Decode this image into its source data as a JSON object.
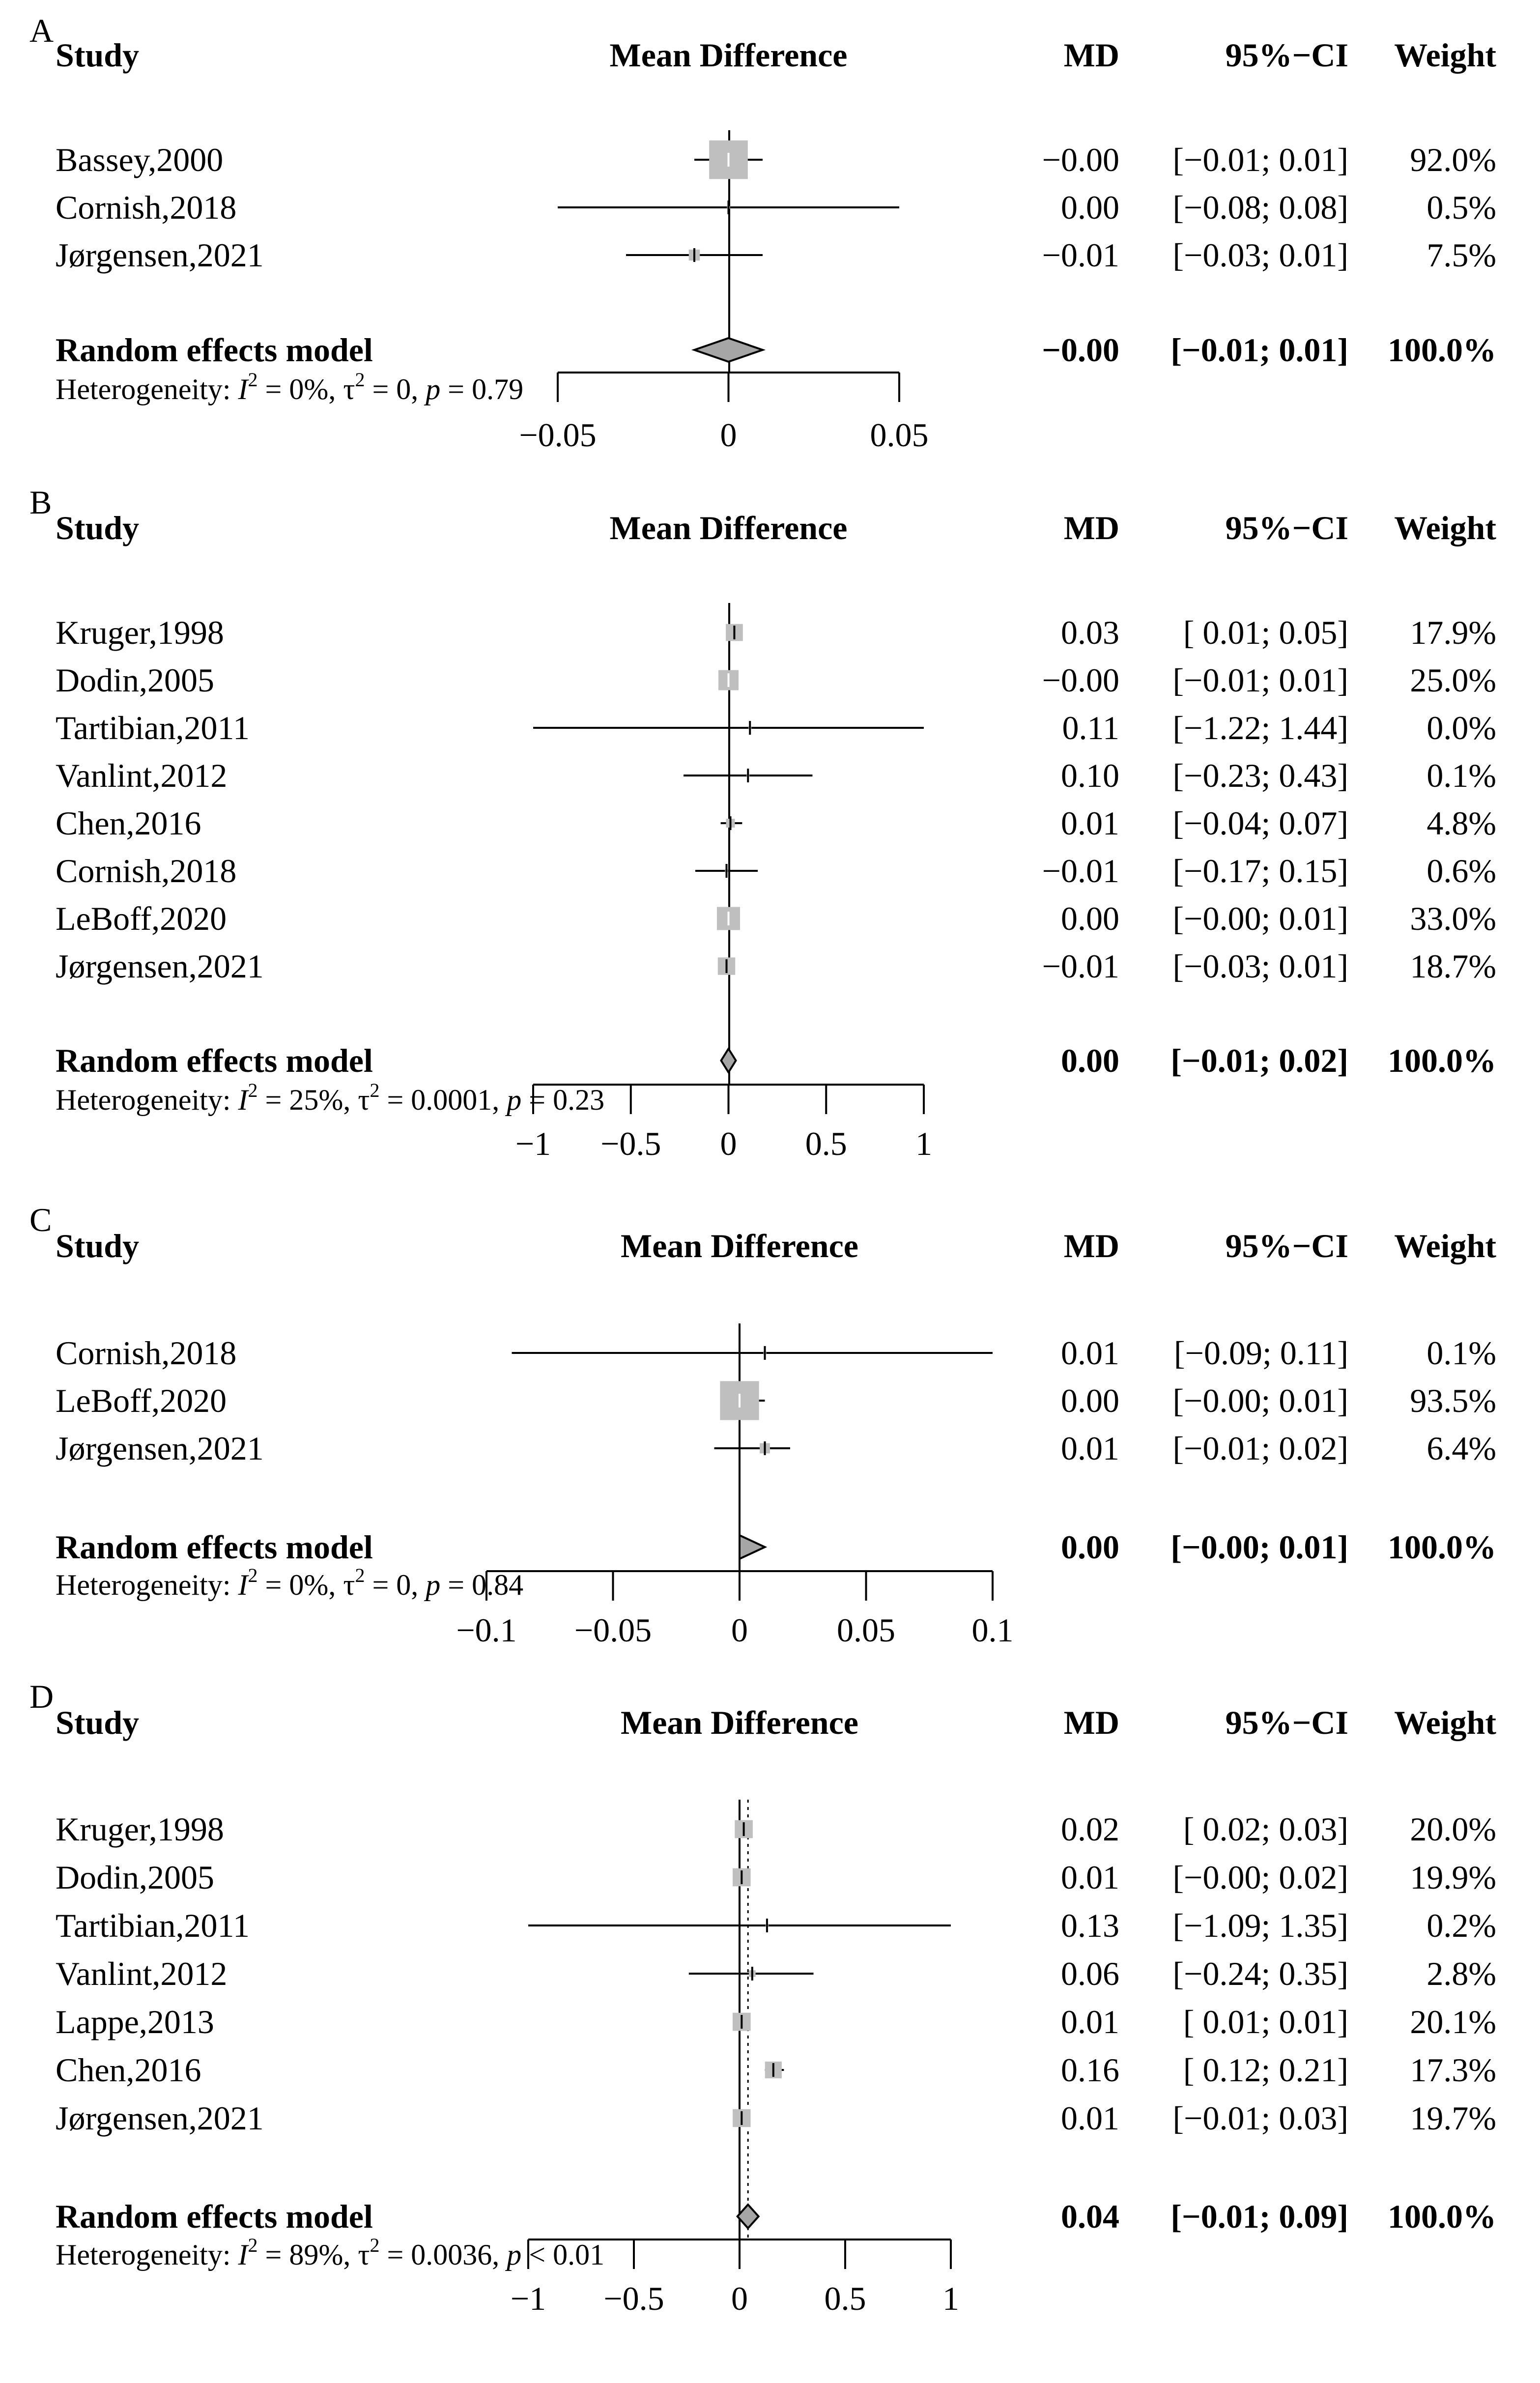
{
  "colors": {
    "box": "#bfbfbf",
    "diamond": "#a6a6a6",
    "line": "#000000",
    "tick": "#ffffff"
  },
  "chart_data": [
    {
      "type": "forest",
      "panel_label": "A",
      "headers": {
        "study": "Study",
        "plot": "Mean Difference",
        "md": "MD",
        "ci": "95%−CI",
        "weight": "Weight"
      },
      "xlim": [
        -0.05,
        0.05
      ],
      "ticks": [
        -0.05,
        0,
        0.05
      ],
      "tick_labels": [
        "−0.05",
        "0",
        "0.05"
      ],
      "studies": [
        {
          "name": "Bassey,2000",
          "md": -0.0,
          "lower": -0.01,
          "upper": 0.01,
          "weight": 92.0,
          "md_text": "−0.00",
          "ci_text": "[−0.01; 0.01]",
          "weight_text": "92.0%"
        },
        {
          "name": "Cornish,2018",
          "md": 0.0,
          "lower": -0.08,
          "upper": 0.08,
          "weight": 0.5,
          "md_text": "0.00",
          "ci_text": "[−0.08; 0.08]",
          "weight_text": "0.5%"
        },
        {
          "name": "Jørgensen,2021",
          "md": -0.01,
          "lower": -0.03,
          "upper": 0.01,
          "weight": 7.5,
          "md_text": "−0.01",
          "ci_text": "[−0.03; 0.01]",
          "weight_text": "7.5%"
        }
      ],
      "pooled": {
        "name": "Random effects model",
        "md": -0.0,
        "lower": -0.01,
        "upper": 0.01,
        "md_text": "−0.00",
        "ci_text": "[−0.01; 0.01]",
        "weight_text": "100.0%"
      },
      "heterogeneity": {
        "prefix": "Heterogeneity:",
        "i2": "= 0%,",
        "tau2": "= 0,",
        "p_rel": "= 0.79"
      }
    },
    {
      "type": "forest",
      "panel_label": "B",
      "headers": {
        "study": "Study",
        "plot": "Mean Difference",
        "md": "MD",
        "ci": "95%−CI",
        "weight": "Weight"
      },
      "xlim": [
        -1,
        1
      ],
      "ticks": [
        -1,
        -0.5,
        0,
        0.5,
        1
      ],
      "tick_labels": [
        "−1",
        "−0.5",
        "0",
        "0.5",
        "1"
      ],
      "studies": [
        {
          "name": "Kruger,1998",
          "md": 0.03,
          "lower": 0.01,
          "upper": 0.05,
          "weight": 17.9,
          "md_text": "0.03",
          "ci_text": "[ 0.01; 0.05]",
          "weight_text": "17.9%"
        },
        {
          "name": "Dodin,2005",
          "md": -0.0,
          "lower": -0.01,
          "upper": 0.01,
          "weight": 25.0,
          "md_text": "−0.00",
          "ci_text": "[−0.01; 0.01]",
          "weight_text": "25.0%"
        },
        {
          "name": "Tartibian,2011",
          "md": 0.11,
          "lower": -1.22,
          "upper": 1.44,
          "weight": 0.0,
          "md_text": "0.11",
          "ci_text": "[−1.22; 1.44]",
          "weight_text": "0.0%"
        },
        {
          "name": "Vanlint,2012",
          "md": 0.1,
          "lower": -0.23,
          "upper": 0.43,
          "weight": 0.1,
          "md_text": "0.10",
          "ci_text": "[−0.23; 0.43]",
          "weight_text": "0.1%"
        },
        {
          "name": "Chen,2016",
          "md": 0.01,
          "lower": -0.04,
          "upper": 0.07,
          "weight": 4.8,
          "md_text": "0.01",
          "ci_text": "[−0.04; 0.07]",
          "weight_text": "4.8%"
        },
        {
          "name": "Cornish,2018",
          "md": -0.01,
          "lower": -0.17,
          "upper": 0.15,
          "weight": 0.6,
          "md_text": "−0.01",
          "ci_text": "[−0.17; 0.15]",
          "weight_text": "0.6%"
        },
        {
          "name": "LeBoff,2020",
          "md": 0.0,
          "lower": -0.0,
          "upper": 0.01,
          "weight": 33.0,
          "md_text": "0.00",
          "ci_text": "[−0.00; 0.01]",
          "weight_text": "33.0%"
        },
        {
          "name": "Jørgensen,2021",
          "md": -0.01,
          "lower": -0.03,
          "upper": 0.01,
          "weight": 18.7,
          "md_text": "−0.01",
          "ci_text": "[−0.03; 0.01]",
          "weight_text": "18.7%"
        }
      ],
      "pooled": {
        "name": "Random effects model",
        "md": 0.0,
        "lower": -0.01,
        "upper": 0.02,
        "md_text": "0.00",
        "ci_text": "[−0.01; 0.02]",
        "weight_text": "100.0%"
      },
      "heterogeneity": {
        "prefix": "Heterogeneity:",
        "i2": "= 25%,",
        "tau2": "= 0.0001,",
        "p_rel": "= 0.23"
      }
    },
    {
      "type": "forest",
      "panel_label": "C",
      "headers": {
        "study": "Study",
        "plot": "Mean Difference",
        "md": "MD",
        "ci": "95%−CI",
        "weight": "Weight"
      },
      "xlim": [
        -0.1,
        0.1
      ],
      "ticks": [
        -0.1,
        -0.05,
        0,
        0.05,
        0.1
      ],
      "tick_labels": [
        "−0.1",
        "−0.05",
        "0",
        "0.05",
        "0.1"
      ],
      "studies": [
        {
          "name": "Cornish,2018",
          "md": 0.01,
          "lower": -0.09,
          "upper": 0.11,
          "weight": 0.1,
          "md_text": "0.01",
          "ci_text": "[−0.09; 0.11]",
          "weight_text": "0.1%"
        },
        {
          "name": "LeBoff,2020",
          "md": 0.0,
          "lower": -0.0,
          "upper": 0.01,
          "weight": 93.5,
          "md_text": "0.00",
          "ci_text": "[−0.00; 0.01]",
          "weight_text": "93.5%"
        },
        {
          "name": "Jørgensen,2021",
          "md": 0.01,
          "lower": -0.01,
          "upper": 0.02,
          "weight": 6.4,
          "md_text": "0.01",
          "ci_text": "[−0.01; 0.02]",
          "weight_text": "6.4%"
        }
      ],
      "pooled": {
        "name": "Random effects model",
        "md": 0.0,
        "lower": -0.0,
        "upper": 0.01,
        "md_text": "0.00",
        "ci_text": "[−0.00; 0.01]",
        "weight_text": "100.0%"
      },
      "heterogeneity": {
        "prefix": "Heterogeneity:",
        "i2": "= 0%,",
        "tau2": "= 0,",
        "p_rel": "= 0.84"
      }
    },
    {
      "type": "forest",
      "panel_label": "D",
      "headers": {
        "study": "Study",
        "plot": "Mean Difference",
        "md": "MD",
        "ci": "95%−CI",
        "weight": "Weight"
      },
      "xlim": [
        -1,
        1
      ],
      "ticks": [
        -1,
        -0.5,
        0,
        0.5,
        1
      ],
      "tick_labels": [
        "−1",
        "−0.5",
        "0",
        "0.5",
        "1"
      ],
      "studies": [
        {
          "name": "Kruger,1998",
          "md": 0.02,
          "lower": 0.02,
          "upper": 0.03,
          "weight": 20.0,
          "md_text": "0.02",
          "ci_text": "[ 0.02; 0.03]",
          "weight_text": "20.0%"
        },
        {
          "name": "Dodin,2005",
          "md": 0.01,
          "lower": -0.0,
          "upper": 0.02,
          "weight": 19.9,
          "md_text": "0.01",
          "ci_text": "[−0.00; 0.02]",
          "weight_text": "19.9%"
        },
        {
          "name": "Tartibian,2011",
          "md": 0.13,
          "lower": -1.09,
          "upper": 1.35,
          "weight": 0.2,
          "md_text": "0.13",
          "ci_text": "[−1.09; 1.35]",
          "weight_text": "0.2%"
        },
        {
          "name": "Vanlint,2012",
          "md": 0.06,
          "lower": -0.24,
          "upper": 0.35,
          "weight": 2.8,
          "md_text": "0.06",
          "ci_text": "[−0.24; 0.35]",
          "weight_text": "2.8%"
        },
        {
          "name": "Lappe,2013",
          "md": 0.01,
          "lower": 0.01,
          "upper": 0.01,
          "weight": 20.1,
          "md_text": "0.01",
          "ci_text": "[ 0.01; 0.01]",
          "weight_text": "20.1%"
        },
        {
          "name": "Chen,2016",
          "md": 0.16,
          "lower": 0.12,
          "upper": 0.21,
          "weight": 17.3,
          "md_text": "0.16",
          "ci_text": "[ 0.12; 0.21]",
          "weight_text": "17.3%"
        },
        {
          "name": "Jørgensen,2021",
          "md": 0.01,
          "lower": -0.01,
          "upper": 0.03,
          "weight": 19.7,
          "md_text": "0.01",
          "ci_text": "[−0.01; 0.03]",
          "weight_text": "19.7%"
        }
      ],
      "pooled": {
        "name": "Random effects model",
        "md": 0.04,
        "lower": -0.01,
        "upper": 0.09,
        "md_text": "0.04",
        "ci_text": "[−0.01; 0.09]",
        "weight_text": "100.0%"
      },
      "heterogeneity": {
        "prefix": "Heterogeneity:",
        "i2": "= 89%,",
        "tau2": "= 0.0036,",
        "p_rel": "< 0.01"
      }
    }
  ]
}
